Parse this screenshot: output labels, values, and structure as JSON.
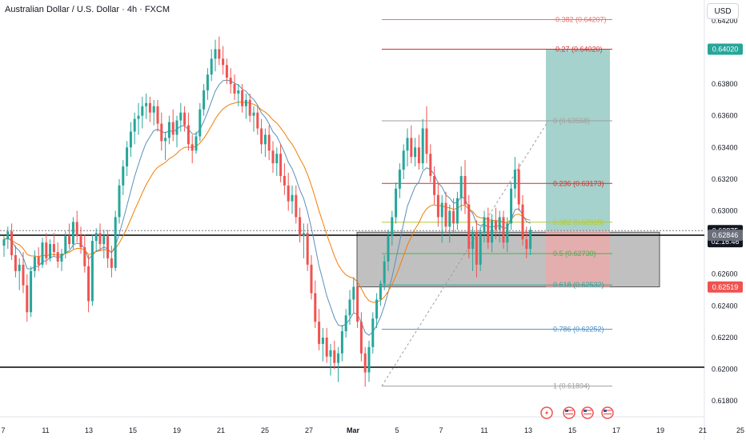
{
  "header": {
    "title": "Australian Dollar / U.S. Dollar · 4h · FXCM",
    "currency_button": "USD"
  },
  "colors": {
    "up": "#26a69a",
    "down": "#ef5350",
    "ema_fast": "#5b8fb9",
    "ema_slow": "#f57c00",
    "gain_zone": "#7fbfb6",
    "loss_zone": "#f3a6a6",
    "box": "#8c8c8c"
  },
  "icons": [
    "flash-icon",
    "us-flag-icon",
    "us-flag-icon",
    "us-flag-icon"
  ],
  "chart_data": {
    "type": "candlestick",
    "title": "Australian Dollar / U.S. Dollar · 4h · FXCM",
    "ylim": [
      0.617,
      0.6428
    ],
    "y_ticks": [
      "0.64200",
      "0.64000",
      "0.63800",
      "0.63600",
      "0.63400",
      "0.63200",
      "0.63000",
      "0.62800",
      "0.62600",
      "0.62400",
      "0.62200",
      "0.62000",
      "0.61800"
    ],
    "x_ticks": [
      {
        "label": "7",
        "x": 4
      },
      {
        "label": "11",
        "x": 57
      },
      {
        "label": "13",
        "x": 111
      },
      {
        "label": "15",
        "x": 166
      },
      {
        "label": "19",
        "x": 221
      },
      {
        "label": "21",
        "x": 276
      },
      {
        "label": "25",
        "x": 331
      },
      {
        "label": "27",
        "x": 386
      },
      {
        "label": "Mar",
        "x": 441
      },
      {
        "label": "5",
        "x": 496
      },
      {
        "label": "7",
        "x": 551
      },
      {
        "label": "11",
        "x": 605
      },
      {
        "label": "13",
        "x": 660
      },
      {
        "label": "15",
        "x": 715
      },
      {
        "label": "17",
        "x": 770
      },
      {
        "label": "19",
        "x": 825
      },
      {
        "label": "21",
        "x": 878
      },
      {
        "label": "25",
        "x": 925
      }
    ],
    "price_badges": [
      {
        "label": "0.64020",
        "value": 0.6402,
        "color": "#26a69a"
      },
      {
        "label": "0.62875",
        "value": 0.62875,
        "color": "#131722"
      },
      {
        "label": "02:16:46",
        "value": 0.62805,
        "color": "#131722"
      },
      {
        "label": "0.62846",
        "value": 0.62846,
        "color": "#6b6f7a"
      },
      {
        "label": "0.62519",
        "value": 0.62519,
        "color": "#ef5350"
      }
    ],
    "fib_levels": [
      {
        "label": "-0.382 (0.64207)",
        "value": 0.64207,
        "color": "#e57373"
      },
      {
        "label": "-0.27 (0.64020)",
        "value": 0.6402,
        "color": "#d32f2f"
      },
      {
        "label": "0 (0.63568)",
        "value": 0.63568,
        "color": "#9e9e9e"
      },
      {
        "label": "0.236 (0.63173)",
        "value": 0.63173,
        "color": "#d32f2f"
      },
      {
        "label": "0.382 (0.62928)",
        "value": 0.62928,
        "color": "#b5c934"
      },
      {
        "label": "0.5 (0.62730)",
        "value": 0.6273,
        "color": "#4caf50"
      },
      {
        "label": "0.618 (0.62532)",
        "value": 0.62532,
        "color": "#26a69a"
      },
      {
        "label": "0.786 (0.62252)",
        "value": 0.62252,
        "color": "#4a90c8"
      },
      {
        "label": "1 (0.61894)",
        "value": 0.61894,
        "color": "#9e9e9e"
      }
    ],
    "horizontal_lines": [
      {
        "value": 0.62846,
        "color": "#000000"
      },
      {
        "value": 0.62013,
        "color": "#000000"
      },
      {
        "value": 0.62875,
        "color": "#787b86",
        "dashed": true
      }
    ],
    "zone_box": {
      "top": 0.62865,
      "bottom": 0.6252
    },
    "position": {
      "entry": 0.62875,
      "target": 0.6402,
      "stop": 0.62519
    },
    "candles": [
      [
        0.6278,
        0.6284,
        0.6271,
        0.6282
      ],
      [
        0.6282,
        0.629,
        0.6276,
        0.6287
      ],
      [
        0.6287,
        0.6292,
        0.6269,
        0.6272
      ],
      [
        0.6272,
        0.6278,
        0.6258,
        0.6262
      ],
      [
        0.6262,
        0.627,
        0.625,
        0.6266
      ],
      [
        0.6266,
        0.6274,
        0.6248,
        0.6253
      ],
      [
        0.6253,
        0.626,
        0.623,
        0.6236
      ],
      [
        0.6236,
        0.6265,
        0.6233,
        0.6262
      ],
      [
        0.6262,
        0.6275,
        0.6258,
        0.6271
      ],
      [
        0.6271,
        0.6277,
        0.6262,
        0.6266
      ],
      [
        0.6266,
        0.6283,
        0.6264,
        0.628
      ],
      [
        0.628,
        0.6286,
        0.6266,
        0.627
      ],
      [
        0.627,
        0.6282,
        0.6268,
        0.6279
      ],
      [
        0.6279,
        0.6286,
        0.6271,
        0.6274
      ],
      [
        0.6274,
        0.628,
        0.6264,
        0.6268
      ],
      [
        0.6268,
        0.6276,
        0.6262,
        0.6273
      ],
      [
        0.6273,
        0.6287,
        0.627,
        0.6284
      ],
      [
        0.6284,
        0.6292,
        0.6276,
        0.6279
      ],
      [
        0.6279,
        0.6296,
        0.6276,
        0.6293
      ],
      [
        0.6293,
        0.63,
        0.628,
        0.6284
      ],
      [
        0.6284,
        0.629,
        0.6273,
        0.6277
      ],
      [
        0.6277,
        0.6285,
        0.6261,
        0.6265
      ],
      [
        0.6265,
        0.6272,
        0.6236,
        0.6243
      ],
      [
        0.6243,
        0.6285,
        0.624,
        0.6281
      ],
      [
        0.6281,
        0.6289,
        0.6274,
        0.6286
      ],
      [
        0.6286,
        0.6292,
        0.6275,
        0.6279
      ],
      [
        0.6279,
        0.6288,
        0.627,
        0.6284
      ],
      [
        0.6284,
        0.6288,
        0.6264,
        0.627
      ],
      [
        0.627,
        0.6278,
        0.6258,
        0.6264
      ],
      [
        0.6264,
        0.63,
        0.6262,
        0.6296
      ],
      [
        0.6296,
        0.632,
        0.6292,
        0.6316
      ],
      [
        0.6316,
        0.6332,
        0.631,
        0.6328
      ],
      [
        0.6328,
        0.6344,
        0.6322,
        0.634
      ],
      [
        0.634,
        0.6356,
        0.6334,
        0.635
      ],
      [
        0.635,
        0.6362,
        0.6342,
        0.6358
      ],
      [
        0.6358,
        0.6368,
        0.6348,
        0.636
      ],
      [
        0.636,
        0.6372,
        0.6352,
        0.6366
      ],
      [
        0.6366,
        0.6374,
        0.6358,
        0.6368
      ],
      [
        0.6368,
        0.6372,
        0.6356,
        0.6362
      ],
      [
        0.6362,
        0.637,
        0.6354,
        0.6366
      ],
      [
        0.6366,
        0.637,
        0.635,
        0.6355
      ],
      [
        0.6355,
        0.6362,
        0.6338,
        0.6344
      ],
      [
        0.6344,
        0.635,
        0.6332,
        0.6346
      ],
      [
        0.6346,
        0.636,
        0.6342,
        0.6356
      ],
      [
        0.6356,
        0.6364,
        0.6344,
        0.6348
      ],
      [
        0.6348,
        0.636,
        0.634,
        0.6357
      ],
      [
        0.6357,
        0.6368,
        0.635,
        0.6362
      ],
      [
        0.6362,
        0.6366,
        0.635,
        0.6354
      ],
      [
        0.6354,
        0.6362,
        0.6338,
        0.6342
      ],
      [
        0.6342,
        0.6348,
        0.633,
        0.6338
      ],
      [
        0.6338,
        0.635,
        0.6336,
        0.6347
      ],
      [
        0.6347,
        0.6368,
        0.6344,
        0.6364
      ],
      [
        0.6364,
        0.638,
        0.636,
        0.6376
      ],
      [
        0.6376,
        0.639,
        0.637,
        0.6386
      ],
      [
        0.6386,
        0.6402,
        0.6382,
        0.6396
      ],
      [
        0.6396,
        0.6408,
        0.6388,
        0.6402
      ],
      [
        0.6402,
        0.641,
        0.6392,
        0.6396
      ],
      [
        0.6396,
        0.6404,
        0.6386,
        0.6392
      ],
      [
        0.6392,
        0.6396,
        0.638,
        0.6384
      ],
      [
        0.6384,
        0.639,
        0.6374,
        0.638
      ],
      [
        0.638,
        0.6386,
        0.637,
        0.6374
      ],
      [
        0.6374,
        0.638,
        0.6366,
        0.6376
      ],
      [
        0.6376,
        0.638,
        0.6362,
        0.6366
      ],
      [
        0.6366,
        0.6374,
        0.6358,
        0.637
      ],
      [
        0.637,
        0.6374,
        0.6356,
        0.636
      ],
      [
        0.636,
        0.6366,
        0.635,
        0.6362
      ],
      [
        0.6362,
        0.6366,
        0.6348,
        0.6352
      ],
      [
        0.6352,
        0.6358,
        0.6336,
        0.6342
      ],
      [
        0.6342,
        0.6352,
        0.6334,
        0.6348
      ],
      [
        0.6348,
        0.6354,
        0.6332,
        0.6338
      ],
      [
        0.6338,
        0.6344,
        0.6324,
        0.633
      ],
      [
        0.633,
        0.634,
        0.6322,
        0.6336
      ],
      [
        0.6336,
        0.6342,
        0.6318,
        0.6322
      ],
      [
        0.6322,
        0.633,
        0.631,
        0.6316
      ],
      [
        0.6316,
        0.6324,
        0.63,
        0.6306
      ],
      [
        0.6306,
        0.6316,
        0.6298,
        0.631
      ],
      [
        0.631,
        0.6316,
        0.6292,
        0.6296
      ],
      [
        0.6296,
        0.6302,
        0.628,
        0.6284
      ],
      [
        0.6284,
        0.6292,
        0.627,
        0.6286
      ],
      [
        0.6286,
        0.6292,
        0.6262,
        0.6266
      ],
      [
        0.6266,
        0.6272,
        0.6244,
        0.6248
      ],
      [
        0.6248,
        0.6256,
        0.6226,
        0.623
      ],
      [
        0.623,
        0.6238,
        0.6212,
        0.6216
      ],
      [
        0.6216,
        0.6226,
        0.6205,
        0.622
      ],
      [
        0.622,
        0.6226,
        0.6204,
        0.6208
      ],
      [
        0.6208,
        0.6216,
        0.6196,
        0.6212
      ],
      [
        0.6212,
        0.6218,
        0.62,
        0.6204
      ],
      [
        0.6204,
        0.6214,
        0.6192,
        0.621
      ],
      [
        0.621,
        0.6228,
        0.6205,
        0.6224
      ],
      [
        0.6224,
        0.6238,
        0.622,
        0.6234
      ],
      [
        0.6234,
        0.625,
        0.6228,
        0.6244
      ],
      [
        0.6244,
        0.6258,
        0.6236,
        0.6252
      ],
      [
        0.6252,
        0.6256,
        0.6226,
        0.623
      ],
      [
        0.623,
        0.6236,
        0.6205,
        0.621
      ],
      [
        0.621,
        0.6214,
        0.6189,
        0.6198
      ],
      [
        0.6198,
        0.6218,
        0.6192,
        0.6214
      ],
      [
        0.6214,
        0.6236,
        0.621,
        0.6232
      ],
      [
        0.6232,
        0.6248,
        0.6226,
        0.6244
      ],
      [
        0.6244,
        0.6256,
        0.624,
        0.6254
      ],
      [
        0.6254,
        0.6272,
        0.625,
        0.6268
      ],
      [
        0.6268,
        0.6288,
        0.6262,
        0.6284
      ],
      [
        0.6284,
        0.63,
        0.6278,
        0.6296
      ],
      [
        0.6296,
        0.6318,
        0.6292,
        0.6314
      ],
      [
        0.6314,
        0.633,
        0.6308,
        0.6326
      ],
      [
        0.6326,
        0.6342,
        0.632,
        0.6338
      ],
      [
        0.6338,
        0.6352,
        0.6328,
        0.6346
      ],
      [
        0.6346,
        0.6354,
        0.633,
        0.6334
      ],
      [
        0.6334,
        0.6346,
        0.6328,
        0.634
      ],
      [
        0.634,
        0.6348,
        0.6326,
        0.633
      ],
      [
        0.633,
        0.6358,
        0.6326,
        0.6352
      ],
      [
        0.6352,
        0.6366,
        0.633,
        0.6336
      ],
      [
        0.6336,
        0.6342,
        0.6318,
        0.6322
      ],
      [
        0.6322,
        0.6328,
        0.6304,
        0.631
      ],
      [
        0.631,
        0.6318,
        0.629,
        0.6296
      ],
      [
        0.6296,
        0.631,
        0.628,
        0.6305
      ],
      [
        0.6305,
        0.6312,
        0.6286,
        0.629
      ],
      [
        0.629,
        0.6304,
        0.628,
        0.63
      ],
      [
        0.63,
        0.6308,
        0.6286,
        0.6292
      ],
      [
        0.6292,
        0.6312,
        0.6288,
        0.6308
      ],
      [
        0.6308,
        0.6328,
        0.63,
        0.6322
      ],
      [
        0.6322,
        0.6332,
        0.6298,
        0.6304
      ],
      [
        0.6304,
        0.631,
        0.627,
        0.6276
      ],
      [
        0.6276,
        0.629,
        0.6262,
        0.6286
      ],
      [
        0.6286,
        0.6294,
        0.6258,
        0.6266
      ],
      [
        0.6266,
        0.629,
        0.6262,
        0.6286
      ],
      [
        0.6286,
        0.63,
        0.628,
        0.6296
      ],
      [
        0.6296,
        0.6302,
        0.6276,
        0.628
      ],
      [
        0.628,
        0.6298,
        0.6274,
        0.6294
      ],
      [
        0.6294,
        0.6302,
        0.6282,
        0.6288
      ],
      [
        0.6288,
        0.63,
        0.628,
        0.6296
      ],
      [
        0.6296,
        0.63,
        0.6276,
        0.628
      ],
      [
        0.628,
        0.6296,
        0.6274,
        0.6292
      ],
      [
        0.6292,
        0.6318,
        0.6288,
        0.6314
      ],
      [
        0.6314,
        0.6334,
        0.6308,
        0.6326
      ],
      [
        0.6326,
        0.633,
        0.63,
        0.6304
      ],
      [
        0.6304,
        0.631,
        0.6278,
        0.6282
      ],
      [
        0.6282,
        0.629,
        0.627,
        0.6276
      ],
      [
        0.6276,
        0.629,
        0.6272,
        0.6288
      ]
    ]
  }
}
